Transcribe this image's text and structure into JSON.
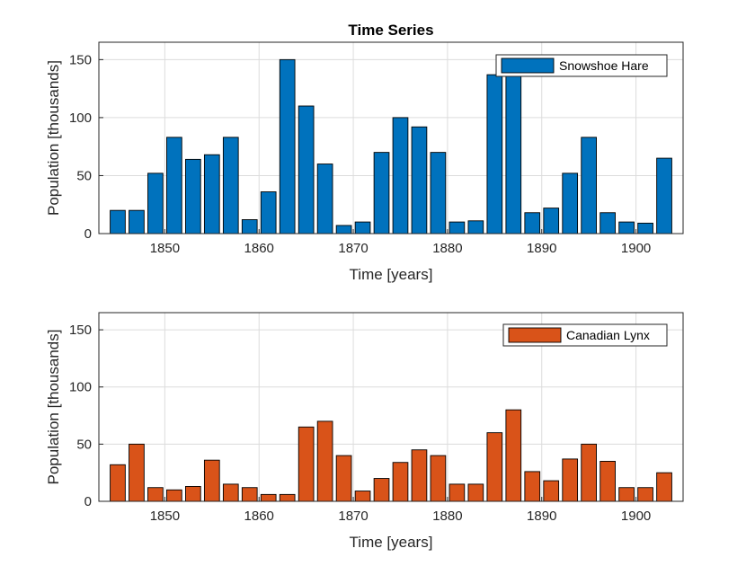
{
  "chart_data": [
    {
      "type": "bar",
      "title": "Time Series",
      "xlabel": "Time [years]",
      "ylabel": "Population [thousands]",
      "xlim": [
        1843,
        1905
      ],
      "ylim": [
        0,
        165
      ],
      "xticks": [
        1850,
        1860,
        1870,
        1880,
        1890,
        1900
      ],
      "yticks": [
        0,
        50,
        100,
        150
      ],
      "grid": true,
      "legend_position": "top-right",
      "series": [
        {
          "name": "Snowshoe Hare",
          "color": "#0072BD",
          "x": [
            1845,
            1847,
            1849,
            1851,
            1853,
            1855,
            1857,
            1859,
            1861,
            1863,
            1865,
            1867,
            1869,
            1871,
            1873,
            1875,
            1877,
            1879,
            1881,
            1883,
            1885,
            1887,
            1889,
            1891,
            1893,
            1895,
            1897,
            1899,
            1901,
            1903
          ],
          "values": [
            20,
            20,
            52,
            83,
            64,
            68,
            83,
            12,
            36,
            150,
            110,
            60,
            7,
            10,
            70,
            100,
            92,
            70,
            10,
            11,
            137,
            137,
            18,
            22,
            52,
            83,
            18,
            10,
            9,
            65
          ]
        }
      ]
    },
    {
      "type": "bar",
      "title": "",
      "xlabel": "Time [years]",
      "ylabel": "Population [thousands]",
      "xlim": [
        1843,
        1905
      ],
      "ylim": [
        0,
        165
      ],
      "xticks": [
        1850,
        1860,
        1870,
        1880,
        1890,
        1900
      ],
      "yticks": [
        0,
        50,
        100,
        150
      ],
      "grid": true,
      "legend_position": "top-right",
      "series": [
        {
          "name": "Canadian Lynx",
          "color": "#D95319",
          "x": [
            1845,
            1847,
            1849,
            1851,
            1853,
            1855,
            1857,
            1859,
            1861,
            1863,
            1865,
            1867,
            1869,
            1871,
            1873,
            1875,
            1877,
            1879,
            1881,
            1883,
            1885,
            1887,
            1889,
            1891,
            1893,
            1895,
            1897,
            1899,
            1901,
            1903
          ],
          "values": [
            32,
            50,
            12,
            10,
            13,
            36,
            15,
            12,
            6,
            6,
            65,
            70,
            40,
            9,
            20,
            34,
            45,
            40,
            15,
            15,
            60,
            80,
            26,
            18,
            37,
            50,
            35,
            12,
            12,
            25
          ]
        }
      ]
    }
  ]
}
